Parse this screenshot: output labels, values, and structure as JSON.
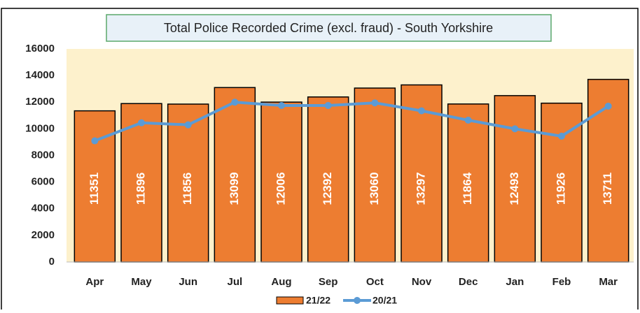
{
  "chart_data": {
    "type": "bar",
    "title": "Total Police Recorded Crime (excl. fraud) - South Yorkshire",
    "categories": [
      "Apr",
      "May",
      "Jun",
      "Jul",
      "Aug",
      "Sep",
      "Oct",
      "Nov",
      "Dec",
      "Jan",
      "Feb",
      "Mar"
    ],
    "series": [
      {
        "name": "21/22",
        "type": "bar",
        "color": "#ed7d31",
        "values": [
          11351,
          11896,
          11856,
          13099,
          12006,
          12392,
          13060,
          13297,
          11864,
          12493,
          11926,
          13711
        ]
      },
      {
        "name": "20/21",
        "type": "line",
        "color": "#5b9bd5",
        "values": [
          9100,
          10450,
          10300,
          12000,
          11750,
          11750,
          11950,
          11350,
          10650,
          10000,
          9450,
          11700
        ]
      }
    ],
    "ylim": [
      0,
      16000
    ],
    "yticks": [
      0,
      2000,
      4000,
      6000,
      8000,
      10000,
      12000,
      14000,
      16000
    ],
    "grid": false,
    "legend": "bottom"
  }
}
